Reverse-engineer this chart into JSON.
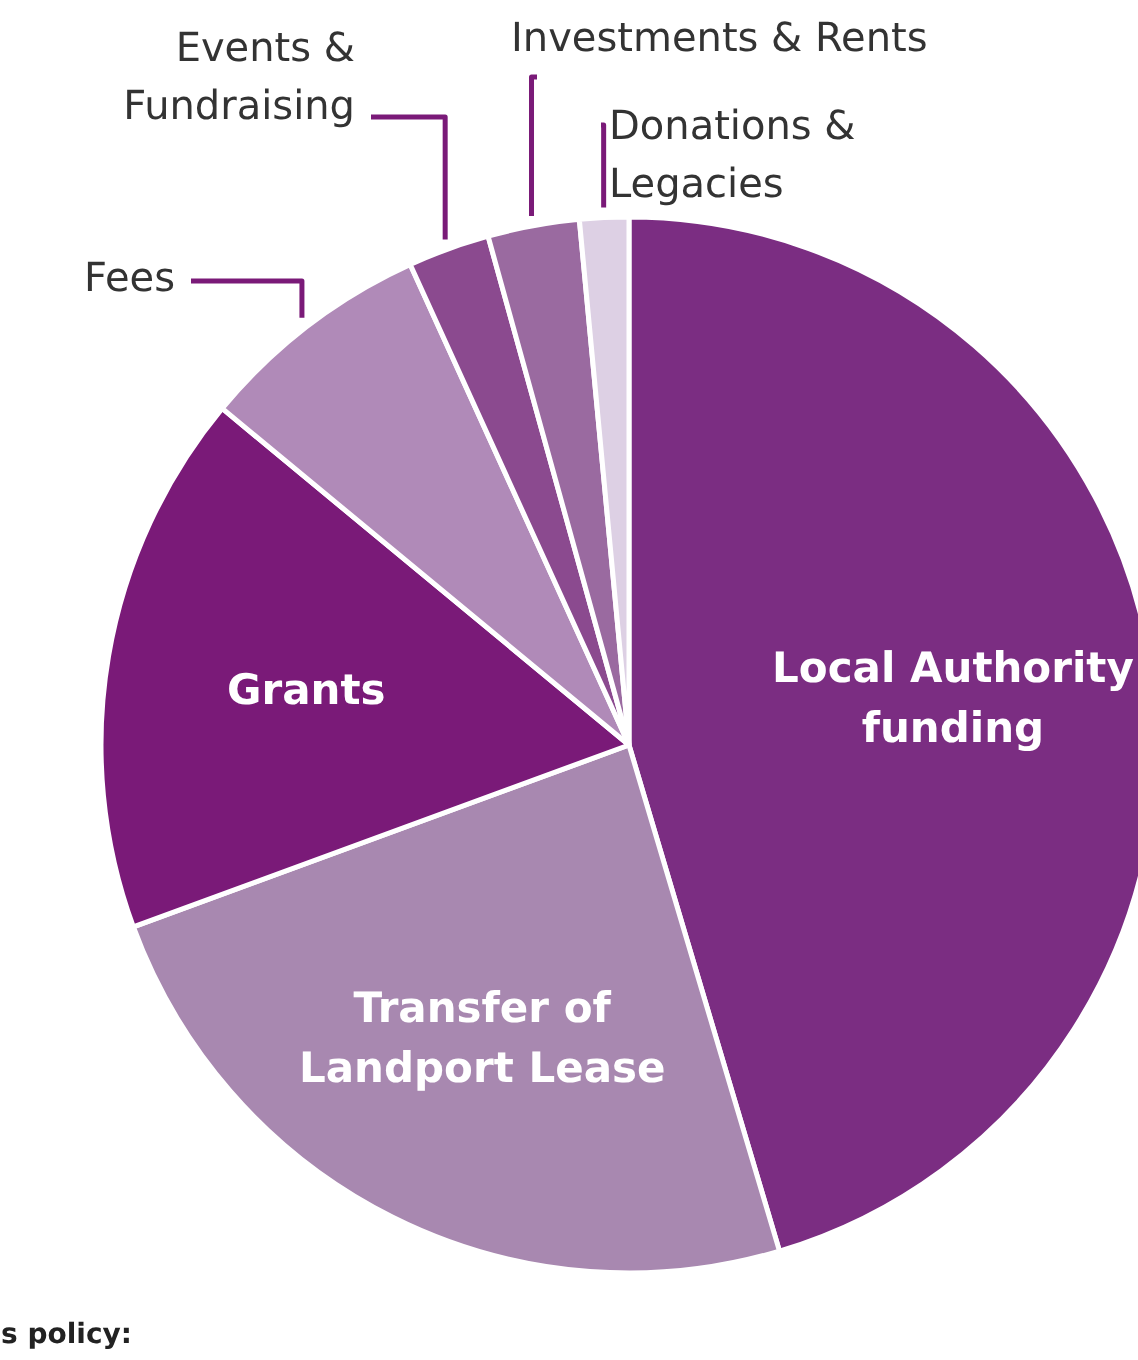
{
  "chart_data": {
    "type": "pie",
    "categories": [
      "Local Authority\nfunding",
      "Transfer of\nLandport Lease",
      "Grants",
      "Fees",
      "Events &\nFundraising",
      "Investments & Rents",
      "Donations &\nLegacies"
    ],
    "values": [
      45.4,
      24,
      16.6,
      7.2,
      2.5,
      2.8,
      1.5
    ],
    "colors": [
      "#7b2d82",
      "#a888b0",
      "#7a1a78",
      "#b08ab8",
      "#8b4a8f",
      "#9a6aa0",
      "#ddd0e4"
    ],
    "annotations": [
      "s policy:"
    ]
  }
}
